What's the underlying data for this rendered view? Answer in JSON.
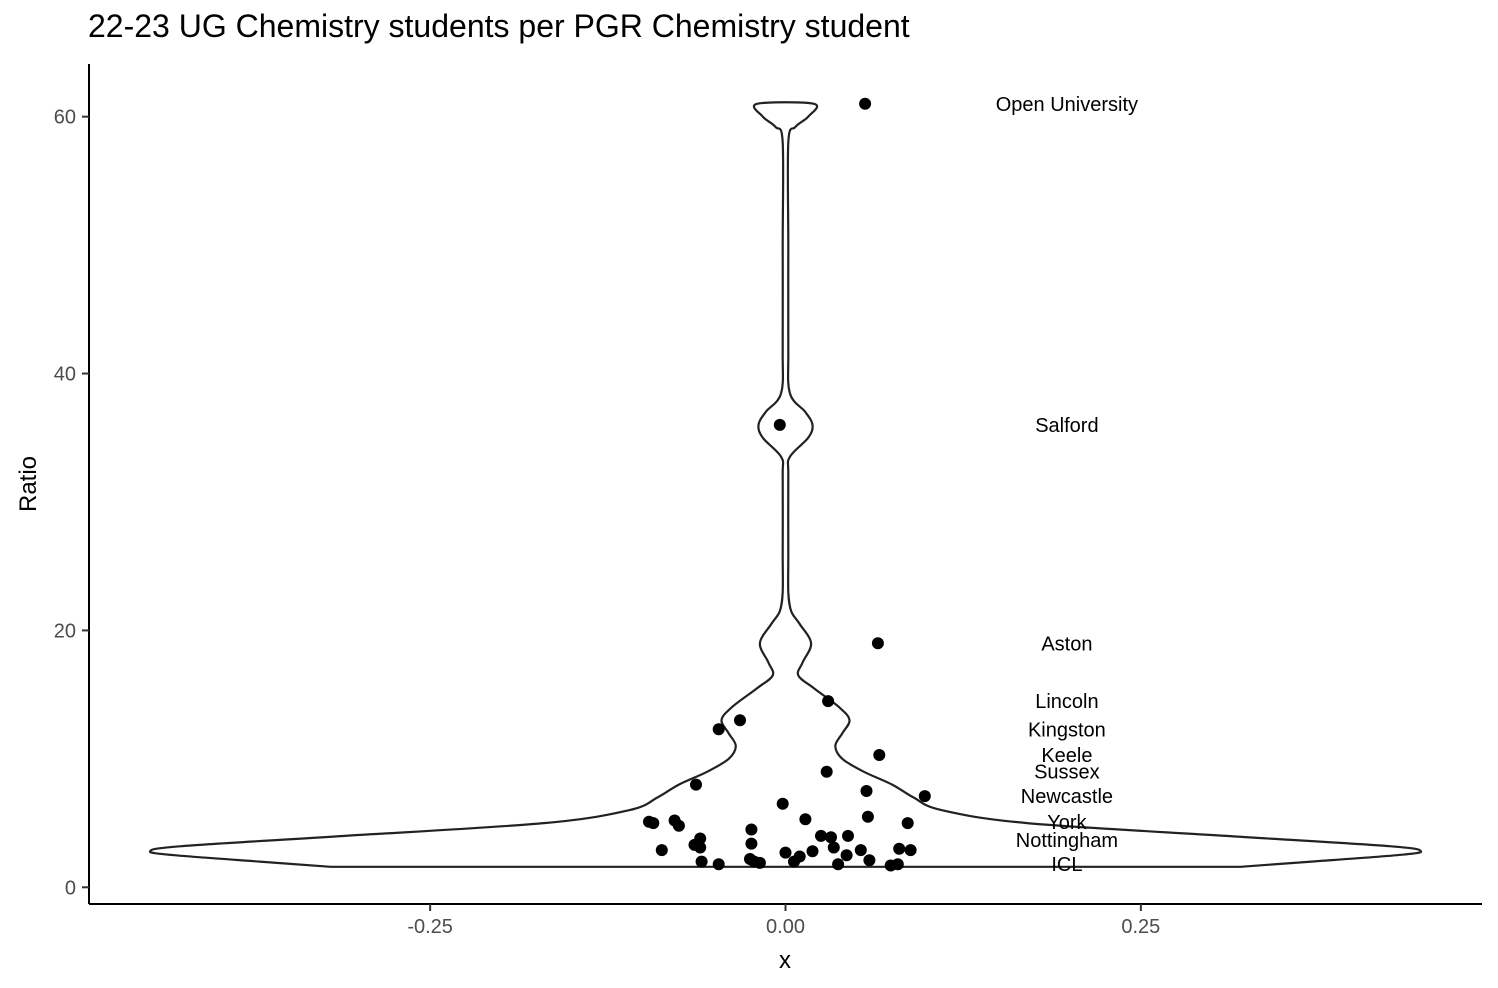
{
  "chart_data": {
    "type": "violin",
    "title": "22-23 UG Chemistry students per PGR Chemistry student",
    "xlabel": "x",
    "ylabel": "Ratio",
    "xlim": [
      -0.49,
      0.49
    ],
    "ylim": [
      -1.3,
      64.1
    ],
    "x_ticks": [
      {
        "value": -0.25,
        "label": "-0.25"
      },
      {
        "value": 0.0,
        "label": "0.00"
      },
      {
        "value": 0.25,
        "label": "0.25"
      }
    ],
    "y_ticks": [
      {
        "value": 0,
        "label": "0"
      },
      {
        "value": 20,
        "label": "20"
      },
      {
        "value": 40,
        "label": "40"
      },
      {
        "value": 60,
        "label": "60"
      }
    ],
    "grid": false,
    "violin": {
      "center_x": 0,
      "ymin": 1.6,
      "ymax": 61.0,
      "halfwidth_profile": [
        [
          1.6,
          0.32
        ],
        [
          2.0,
          0.37
        ],
        [
          2.5,
          0.43
        ],
        [
          2.8,
          0.447
        ],
        [
          3.2,
          0.425
        ],
        [
          4.0,
          0.31
        ],
        [
          5.0,
          0.17
        ],
        [
          6.0,
          0.11
        ],
        [
          7.0,
          0.09
        ],
        [
          8.0,
          0.075
        ],
        [
          9.0,
          0.055
        ],
        [
          10.0,
          0.04
        ],
        [
          11.0,
          0.035
        ],
        [
          12.0,
          0.04
        ],
        [
          13.0,
          0.045
        ],
        [
          14.0,
          0.038
        ],
        [
          15.5,
          0.02
        ],
        [
          16.5,
          0.009
        ],
        [
          17.5,
          0.012
        ],
        [
          19.0,
          0.018
        ],
        [
          20.5,
          0.01
        ],
        [
          21.5,
          0.004
        ],
        [
          23.0,
          0.002
        ],
        [
          26.0,
          0.002
        ],
        [
          32.0,
          0.002
        ],
        [
          33.5,
          0.003
        ],
        [
          35.0,
          0.016
        ],
        [
          36.0,
          0.019
        ],
        [
          37.0,
          0.014
        ],
        [
          38.5,
          0.003
        ],
        [
          42.0,
          0.002
        ],
        [
          50.0,
          0.002
        ],
        [
          58.0,
          0.002
        ],
        [
          59.2,
          0.007
        ],
        [
          60.0,
          0.016
        ],
        [
          61.0,
          0.02
        ]
      ]
    },
    "points": [
      {
        "x": 0.056,
        "y": 61.0
      },
      {
        "x": -0.004,
        "y": 36.0
      },
      {
        "x": 0.065,
        "y": 19.0
      },
      {
        "x": 0.03,
        "y": 14.5
      },
      {
        "x": -0.032,
        "y": 13.0
      },
      {
        "x": -0.047,
        "y": 12.3
      },
      {
        "x": 0.066,
        "y": 10.3
      },
      {
        "x": 0.029,
        "y": 9.0
      },
      {
        "x": -0.063,
        "y": 8.0
      },
      {
        "x": 0.057,
        "y": 7.5
      },
      {
        "x": 0.098,
        "y": 7.1
      },
      {
        "x": -0.002,
        "y": 6.5
      },
      {
        "x": 0.058,
        "y": 5.5
      },
      {
        "x": 0.014,
        "y": 5.3
      },
      {
        "x": -0.096,
        "y": 5.1
      },
      {
        "x": -0.093,
        "y": 5.0
      },
      {
        "x": -0.078,
        "y": 5.2
      },
      {
        "x": -0.075,
        "y": 4.8
      },
      {
        "x": 0.086,
        "y": 5.0
      },
      {
        "x": -0.024,
        "y": 4.5
      },
      {
        "x": -0.06,
        "y": 3.8
      },
      {
        "x": 0.025,
        "y": 4.0
      },
      {
        "x": 0.032,
        "y": 3.9
      },
      {
        "x": 0.044,
        "y": 4.0
      },
      {
        "x": -0.064,
        "y": 3.3
      },
      {
        "x": -0.06,
        "y": 3.1
      },
      {
        "x": -0.024,
        "y": 3.4
      },
      {
        "x": 0.034,
        "y": 3.1
      },
      {
        "x": 0.08,
        "y": 3.0
      },
      {
        "x": 0.088,
        "y": 2.9
      },
      {
        "x": -0.087,
        "y": 2.9
      },
      {
        "x": 0.053,
        "y": 2.9
      },
      {
        "x": 0.0,
        "y": 2.7
      },
      {
        "x": 0.019,
        "y": 2.8
      },
      {
        "x": 0.01,
        "y": 2.4
      },
      {
        "x": 0.043,
        "y": 2.5
      },
      {
        "x": -0.025,
        "y": 2.2
      },
      {
        "x": -0.022,
        "y": 2.0
      },
      {
        "x": -0.059,
        "y": 2.0
      },
      {
        "x": -0.018,
        "y": 1.9
      },
      {
        "x": 0.006,
        "y": 2.0
      },
      {
        "x": -0.047,
        "y": 1.8
      },
      {
        "x": 0.059,
        "y": 2.1
      },
      {
        "x": 0.037,
        "y": 1.8
      },
      {
        "x": 0.074,
        "y": 1.7
      },
      {
        "x": 0.079,
        "y": 1.8
      }
    ],
    "annotations": [
      {
        "label": "Open University",
        "x": 0.198,
        "y": 61.0
      },
      {
        "label": "Salford",
        "x": 0.198,
        "y": 36.0
      },
      {
        "label": "Aston",
        "x": 0.198,
        "y": 19.0
      },
      {
        "label": "Lincoln",
        "x": 0.198,
        "y": 14.5
      },
      {
        "label": "Kingston",
        "x": 0.198,
        "y": 12.3
      },
      {
        "label": "Keele",
        "x": 0.198,
        "y": 10.3
      },
      {
        "label": "Sussex",
        "x": 0.198,
        "y": 9.0
      },
      {
        "label": "Newcastle",
        "x": 0.198,
        "y": 7.1
      },
      {
        "label": "York",
        "x": 0.198,
        "y": 5.1
      },
      {
        "label": "Nottingham",
        "x": 0.198,
        "y": 3.7
      },
      {
        "label": "ICL",
        "x": 0.198,
        "y": 1.8
      }
    ]
  }
}
